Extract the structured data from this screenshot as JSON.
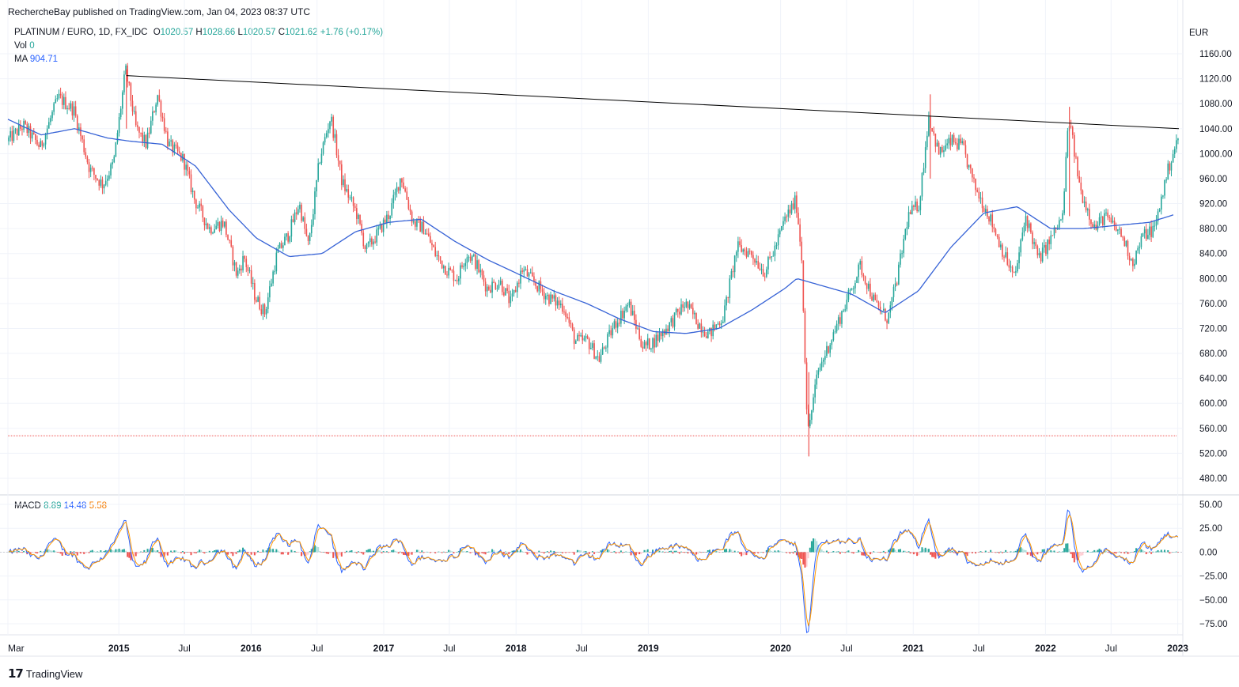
{
  "header": {
    "published": "RechercheBay published on TradingView.com, Jan 04, 2023 08:37 UTC"
  },
  "legend": {
    "symbol": "PLATINUM / EURO, 1D, FX_IDC",
    "open_label": "O",
    "open": "1020.57",
    "high_label": "H",
    "high": "1028.66",
    "low_label": "L",
    "low": "1020.57",
    "close_label": "C",
    "close": "1021.62",
    "change": "+1.76 (+0.17%)",
    "vol_label": "Vol",
    "vol": "0",
    "ma_label": "MA",
    "ma": "904.71",
    "macd_label": "MACD",
    "macd": "8.89",
    "macd_signal": "14.48",
    "macd_hist": "5.58"
  },
  "footer": {
    "brand": "TradingView",
    "logo": "tradingview-logo-icon"
  },
  "colors": {
    "up": "#26a69a",
    "down": "#ef5350",
    "ma": "#3763d6",
    "macd": "#2962ff",
    "signal": "#ff9800",
    "trendline": "#000000",
    "hline": "#ef5350"
  },
  "chart_data": [
    {
      "type": "candlestick",
      "currency": "EUR",
      "ylim": [
        460,
        1180
      ],
      "y_ticks": [
        1160,
        1120,
        1080,
        1040,
        1000,
        960,
        920,
        880,
        840,
        800,
        760,
        720,
        680,
        640,
        600,
        560,
        520,
        480
      ],
      "y_tick_labels": [
        "1160.00",
        "1120.00",
        "1080.00",
        "1040.00",
        "1000.00",
        "960.00",
        "920.00",
        "880.00",
        "840.00",
        "800.00",
        "760.00",
        "720.00",
        "680.00",
        "640.00",
        "600.00",
        "560.00",
        "520.00",
        "480.00"
      ],
      "x_range": [
        "2014-03-01",
        "2023-01-04"
      ],
      "x_ticks": [
        {
          "label": "Mar",
          "date": "2014-03-01",
          "year": false
        },
        {
          "label": "2015",
          "date": "2015-01-01",
          "year": true
        },
        {
          "label": "Jul",
          "date": "2015-07-01",
          "year": false
        },
        {
          "label": "2016",
          "date": "2016-01-01",
          "year": true
        },
        {
          "label": "Jul",
          "date": "2016-07-01",
          "year": false
        },
        {
          "label": "2017",
          "date": "2017-01-01",
          "year": true
        },
        {
          "label": "Jul",
          "date": "2017-07-01",
          "year": false
        },
        {
          "label": "2018",
          "date": "2018-01-01",
          "year": true
        },
        {
          "label": "Jul",
          "date": "2018-07-01",
          "year": false
        },
        {
          "label": "2019",
          "date": "2019-01-01",
          "year": true
        },
        {
          "label": "2020",
          "date": "2020-01-01",
          "year": true
        },
        {
          "label": "Jul",
          "date": "2020-07-01",
          "year": false
        },
        {
          "label": "2021",
          "date": "2021-01-01",
          "year": true
        },
        {
          "label": "Jul",
          "date": "2021-07-01",
          "year": false
        },
        {
          "label": "2022",
          "date": "2022-01-01",
          "year": true
        },
        {
          "label": "Jul",
          "date": "2022-07-01",
          "year": false
        },
        {
          "label": "2023",
          "date": "2023-01-01",
          "year": true
        }
      ],
      "price_path": [
        [
          "2014-03-01",
          1020
        ],
        [
          "2014-04-15",
          1045
        ],
        [
          "2014-06-01",
          1010
        ],
        [
          "2014-07-20",
          1090
        ],
        [
          "2014-09-01",
          1070
        ],
        [
          "2014-10-15",
          975
        ],
        [
          "2014-11-20",
          950
        ],
        [
          "2014-12-20",
          985
        ],
        [
          "2015-01-22",
          1135
        ],
        [
          "2015-02-20",
          1040
        ],
        [
          "2015-03-20",
          1015
        ],
        [
          "2015-04-20",
          1095
        ],
        [
          "2015-05-20",
          1015
        ],
        [
          "2015-07-01",
          990
        ],
        [
          "2015-08-01",
          925
        ],
        [
          "2015-09-10",
          880
        ],
        [
          "2015-10-20",
          890
        ],
        [
          "2015-11-25",
          805
        ],
        [
          "2015-12-15",
          835
        ],
        [
          "2016-01-15",
          770
        ],
        [
          "2016-02-10",
          745
        ],
        [
          "2016-03-15",
          840
        ],
        [
          "2016-04-15",
          870
        ],
        [
          "2016-05-15",
          920
        ],
        [
          "2016-06-10",
          850
        ],
        [
          "2016-07-10",
          990
        ],
        [
          "2016-08-10",
          1060
        ],
        [
          "2016-09-10",
          955
        ],
        [
          "2016-10-20",
          905
        ],
        [
          "2016-11-15",
          845
        ],
        [
          "2016-12-15",
          870
        ],
        [
          "2017-01-20",
          905
        ],
        [
          "2017-02-20",
          965
        ],
        [
          "2017-03-25",
          890
        ],
        [
          "2017-04-25",
          880
        ],
        [
          "2017-05-25",
          840
        ],
        [
          "2017-06-25",
          815
        ],
        [
          "2017-07-25",
          800
        ],
        [
          "2017-08-20",
          840
        ],
        [
          "2017-09-10",
          830
        ],
        [
          "2017-10-15",
          785
        ],
        [
          "2017-11-20",
          795
        ],
        [
          "2017-12-20",
          760
        ],
        [
          "2018-01-20",
          815
        ],
        [
          "2018-02-20",
          795
        ],
        [
          "2018-04-01",
          770
        ],
        [
          "2018-05-15",
          755
        ],
        [
          "2018-06-15",
          700
        ],
        [
          "2018-07-20",
          700
        ],
        [
          "2018-08-20",
          670
        ],
        [
          "2018-10-01",
          725
        ],
        [
          "2018-11-10",
          760
        ],
        [
          "2018-12-20",
          690
        ],
        [
          "2019-01-20",
          700
        ],
        [
          "2019-03-01",
          725
        ],
        [
          "2019-04-15",
          760
        ],
        [
          "2019-05-20",
          730
        ],
        [
          "2019-06-20",
          710
        ],
        [
          "2019-07-30",
          740
        ],
        [
          "2019-09-05",
          850
        ],
        [
          "2019-10-15",
          840
        ],
        [
          "2019-11-20",
          810
        ],
        [
          "2019-12-20",
          850
        ],
        [
          "2020-01-15",
          895
        ],
        [
          "2020-02-15",
          925
        ],
        [
          "2020-03-01",
          840
        ],
        [
          "2020-03-18",
          550
        ],
        [
          "2020-04-15",
          650
        ],
        [
          "2020-05-20",
          700
        ],
        [
          "2020-07-01",
          760
        ],
        [
          "2020-08-10",
          820
        ],
        [
          "2020-09-20",
          760
        ],
        [
          "2020-10-25",
          735
        ],
        [
          "2020-11-20",
          800
        ],
        [
          "2020-12-20,",
          900
        ],
        [
          "2021-01-20",
          920
        ],
        [
          "2021-02-15",
          1060
        ],
        [
          "2021-03-15",
          1000
        ],
        [
          "2021-04-20",
          1020
        ],
        [
          "2021-05-20",
          1010
        ],
        [
          "2021-06-20",
          950
        ],
        [
          "2021-08-01",
          900
        ],
        [
          "2021-09-10",
          840
        ],
        [
          "2021-10-10",
          800
        ],
        [
          "2021-11-10",
          900
        ],
        [
          "2021-12-15",
          830
        ],
        [
          "2022-01-15",
          860
        ],
        [
          "2022-02-20",
          900
        ],
        [
          "2022-03-08",
          1060
        ],
        [
          "2022-04-10",
          940
        ],
        [
          "2022-05-20",
          880
        ],
        [
          "2022-06-15",
          900
        ],
        [
          "2022-08-01",
          870
        ],
        [
          "2022-09-01",
          825
        ],
        [
          "2022-10-01",
          870
        ],
        [
          "2022-11-01",
          880
        ],
        [
          "2022-12-01",
          960
        ],
        [
          "2022-12-20",
          1000
        ],
        [
          "2023-01-04",
          1021.62
        ]
      ],
      "moving_average": [
        [
          "2014-03-01",
          1055
        ],
        [
          "2014-06-01",
          1030
        ],
        [
          "2014-09-01",
          1040
        ],
        [
          "2014-12-01",
          1025
        ],
        [
          "2015-02-01",
          1020
        ],
        [
          "2015-05-01",
          1015
        ],
        [
          "2015-08-01",
          980
        ],
        [
          "2015-11-01",
          910
        ],
        [
          "2016-01-15",
          865
        ],
        [
          "2016-04-15",
          835
        ],
        [
          "2016-07-15",
          840
        ],
        [
          "2016-10-15",
          875
        ],
        [
          "2017-01-15",
          890
        ],
        [
          "2017-04-15",
          895
        ],
        [
          "2017-07-15",
          860
        ],
        [
          "2017-10-15",
          830
        ],
        [
          "2018-01-15",
          805
        ],
        [
          "2018-04-15",
          780
        ],
        [
          "2018-07-15",
          760
        ],
        [
          "2018-10-15",
          735
        ],
        [
          "2019-01-15",
          715
        ],
        [
          "2019-04-15",
          712
        ],
        [
          "2019-07-15",
          720
        ],
        [
          "2019-10-15",
          750
        ],
        [
          "2020-01-15",
          785
        ],
        [
          "2020-02-15",
          800
        ],
        [
          "2020-04-15",
          790
        ],
        [
          "2020-07-15",
          775
        ],
        [
          "2020-10-15",
          745
        ],
        [
          "2021-01-15",
          780
        ],
        [
          "2021-04-15",
          850
        ],
        [
          "2021-07-15",
          905
        ],
        [
          "2021-10-15",
          915
        ],
        [
          "2022-01-15",
          880
        ],
        [
          "2022-04-15",
          880
        ],
        [
          "2022-07-15",
          885
        ],
        [
          "2022-10-15",
          890
        ],
        [
          "2023-01-04",
          904.71
        ]
      ],
      "trendline": [
        [
          "2015-01-22",
          1125
        ],
        [
          "2023-01-04",
          1040
        ]
      ],
      "horizontal_line": 548
    },
    {
      "type": "macd",
      "ylim": [
        -85,
        55
      ],
      "y_ticks": [
        50,
        25,
        0,
        -25,
        -50,
        -75
      ],
      "y_tick_labels": [
        "50.00",
        "25.00",
        "0.00",
        "−25.00",
        "−50.00",
        "−75.00"
      ],
      "extremes": [
        [
          "2015-01-22",
          35
        ],
        [
          "2016-08-10",
          30
        ],
        [
          "2020-03-20",
          -77
        ],
        [
          "2021-02-15",
          45
        ],
        [
          "2022-03-08",
          32
        ]
      ]
    }
  ]
}
